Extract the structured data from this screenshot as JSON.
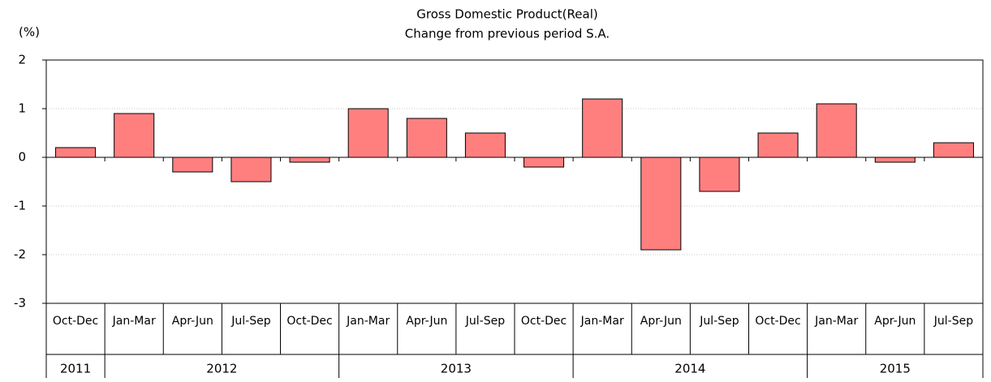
{
  "chart_data": {
    "type": "bar",
    "title": "Gross Domestic Product(Real)",
    "subtitle": "Change from previous period S.A.",
    "y_label": "(%)",
    "groups": [
      {
        "label": "2011",
        "categories": [
          "Oct-Dec"
        ]
      },
      {
        "label": "2012",
        "categories": [
          "Jan-Mar",
          "Apr-Jun",
          "Jul-Sep",
          "Oct-Dec"
        ]
      },
      {
        "label": "2013",
        "categories": [
          "Jan-Mar",
          "Apr-Jun",
          "Jul-Sep",
          "Oct-Dec"
        ]
      },
      {
        "label": "2014",
        "categories": [
          "Jan-Mar",
          "Apr-Jun",
          "Jul-Sep",
          "Oct-Dec"
        ]
      },
      {
        "label": "2015",
        "categories": [
          "Jan-Mar",
          "Apr-Jun",
          "Jul-Sep"
        ]
      }
    ],
    "values": [
      0.2,
      0.9,
      -0.3,
      -0.5,
      -0.1,
      1.0,
      0.8,
      0.5,
      -0.2,
      1.2,
      -1.9,
      -0.7,
      0.5,
      1.1,
      -0.1,
      0.3
    ],
    "color": "#ff7f7f",
    "ylim": [
      -3,
      2
    ],
    "yticks": [
      -3,
      -2,
      -1,
      0,
      1,
      2
    ],
    "grid": true
  }
}
